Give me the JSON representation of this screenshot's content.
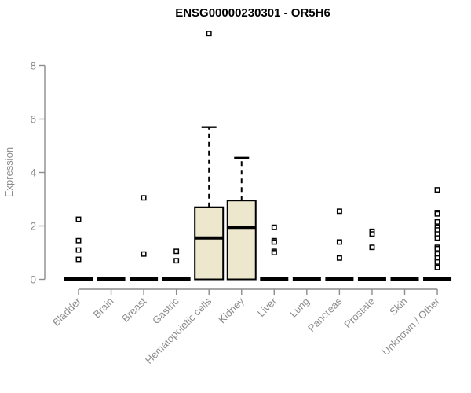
{
  "chart_data": {
    "type": "boxplot",
    "title": "ENSG00000230301 - OR5H6",
    "ylabel": "Expression",
    "xlabel": "",
    "ylim": [
      0,
      8
    ],
    "yticks": [
      0,
      2,
      4,
      6,
      8
    ],
    "grid": false,
    "legend": "none",
    "categories": [
      "Bladder",
      "Brain",
      "Breast",
      "Gastric",
      "Hematopoietic cells",
      "Kidney",
      "Liver",
      "Lung",
      "Pancreas",
      "Prostate",
      "Skin",
      "Unknown / Other"
    ],
    "series": [
      {
        "name": "Bladder",
        "q1": 0,
        "median": 0,
        "q3": 0,
        "whisker_low": 0,
        "whisker_high": 0,
        "outliers": [
          2.25,
          1.45,
          1.1,
          0.75
        ]
      },
      {
        "name": "Brain",
        "q1": 0,
        "median": 0,
        "q3": 0,
        "whisker_low": 0,
        "whisker_high": 0,
        "outliers": []
      },
      {
        "name": "Breast",
        "q1": 0,
        "median": 0,
        "q3": 0,
        "whisker_low": 0,
        "whisker_high": 0,
        "outliers": [
          3.05,
          0.95
        ]
      },
      {
        "name": "Gastric",
        "q1": 0,
        "median": 0,
        "q3": 0,
        "whisker_low": 0,
        "whisker_high": 0,
        "outliers": [
          1.05,
          0.7
        ]
      },
      {
        "name": "Hematopoietic cells",
        "q1": 0,
        "median": 1.55,
        "q3": 2.7,
        "whisker_low": 0,
        "whisker_high": 5.7,
        "outliers": [
          9.2
        ]
      },
      {
        "name": "Kidney",
        "q1": 0,
        "median": 1.95,
        "q3": 2.95,
        "whisker_low": 0,
        "whisker_high": 4.55,
        "outliers": []
      },
      {
        "name": "Liver",
        "q1": 0,
        "median": 0,
        "q3": 0,
        "whisker_low": 0,
        "whisker_high": 0,
        "outliers": [
          1.95,
          1.45,
          1.4,
          1.05,
          1.0
        ]
      },
      {
        "name": "Lung",
        "q1": 0,
        "median": 0,
        "q3": 0,
        "whisker_low": 0,
        "whisker_high": 0,
        "outliers": []
      },
      {
        "name": "Pancreas",
        "q1": 0,
        "median": 0,
        "q3": 0,
        "whisker_low": 0,
        "whisker_high": 0,
        "outliers": [
          2.55,
          1.4,
          0.8
        ]
      },
      {
        "name": "Prostate",
        "q1": 0,
        "median": 0,
        "q3": 0,
        "whisker_low": 0,
        "whisker_high": 0,
        "outliers": [
          1.8,
          1.7,
          1.2
        ]
      },
      {
        "name": "Skin",
        "q1": 0,
        "median": 0,
        "q3": 0,
        "whisker_low": 0,
        "whisker_high": 0,
        "outliers": []
      },
      {
        "name": "Unknown / Other",
        "q1": 0,
        "median": 0,
        "q3": 0,
        "whisker_low": 0,
        "whisker_high": 0,
        "outliers": [
          3.35,
          2.5,
          2.45,
          2.15,
          1.95,
          1.85,
          1.7,
          1.55,
          1.2,
          1.15,
          0.95,
          0.8,
          0.65,
          0.45
        ]
      }
    ],
    "colors": {
      "background": "#FFFFFF",
      "box_fill": "#EDE7CD",
      "box_stroke": "#000000",
      "median": "#000000",
      "outlier_stroke": "#000000",
      "outlier_fill": "#FFFFFF",
      "axis": "#8C8C8C",
      "tick_text": "#8C8C8C",
      "title_text": "#000000"
    }
  }
}
